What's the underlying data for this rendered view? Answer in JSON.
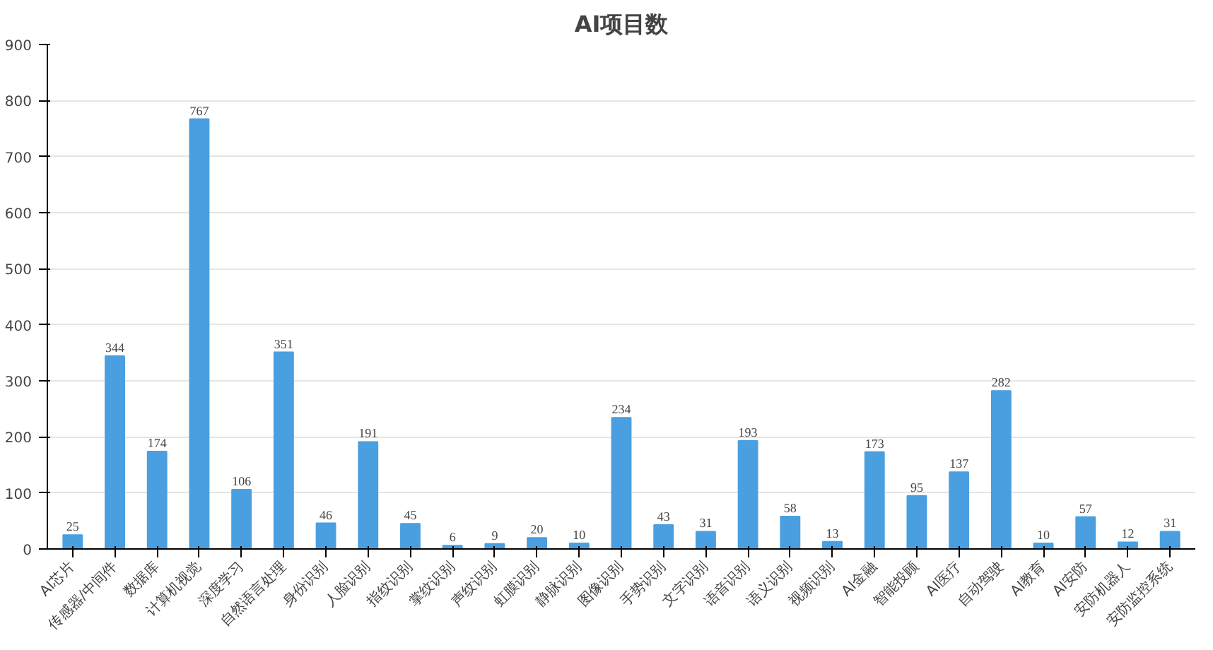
{
  "chart_data": {
    "type": "bar",
    "title": "AI项目数",
    "categories": [
      "AI芯片",
      "传感器/中间件",
      "数据库",
      "计算机视觉",
      "深度学习",
      "自然语言处理",
      "身份识别",
      "人脸识别",
      "指纹识别",
      "掌纹识别",
      "声纹识别",
      "虹膜识别",
      "静脉识别",
      "图像识别",
      "手势识别",
      "文字识别",
      "语音识别",
      "语义识别",
      "视频识别",
      "AI金融",
      "智能投顾",
      "AI医疗",
      "自动驾驶",
      "AI教育",
      "AI安防",
      "安防机器人",
      "安防监控系统"
    ],
    "values": [
      25,
      344,
      174,
      767,
      106,
      351,
      46,
      191,
      45,
      6,
      9,
      20,
      10,
      234,
      43,
      31,
      193,
      58,
      13,
      173,
      95,
      137,
      282,
      10,
      57,
      12,
      31
    ],
    "color": "#4a9fe0",
    "ylim": [
      0,
      900
    ],
    "yticks": [
      0,
      100,
      200,
      300,
      400,
      500,
      600,
      700,
      800,
      900
    ],
    "grid": "y",
    "data_labels": true
  }
}
